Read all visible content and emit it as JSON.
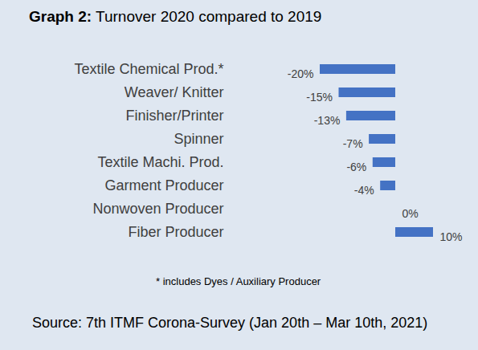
{
  "chart_data": {
    "type": "bar",
    "title": "Graph 2: Turnover 2020 compared to 2019",
    "orientation": "horizontal",
    "categories": [
      "Textile Chemical Prod.*",
      "Weaver/ Knitter",
      "Finisher/Printer",
      "Spinner",
      "Textile Machi. Prod.",
      "Garment Producer",
      "Nonwoven Producer",
      "Fiber Producer"
    ],
    "values": [
      -20,
      -15,
      -13,
      -7,
      -6,
      -4,
      0,
      10
    ],
    "value_labels": [
      "-20%",
      "-15%",
      "-13%",
      "-7%",
      "-6%",
      "-4%",
      "0%",
      "10%"
    ],
    "color": "#4472c4",
    "data_labels": true,
    "tick_labels": "y",
    "grid": false,
    "annotations": [
      "* includes Dyes / Auxiliary Producer",
      "Source: 7th ITMF Corona-Survey (Jan 20th – Mar 10th, 2021)"
    ]
  }
}
